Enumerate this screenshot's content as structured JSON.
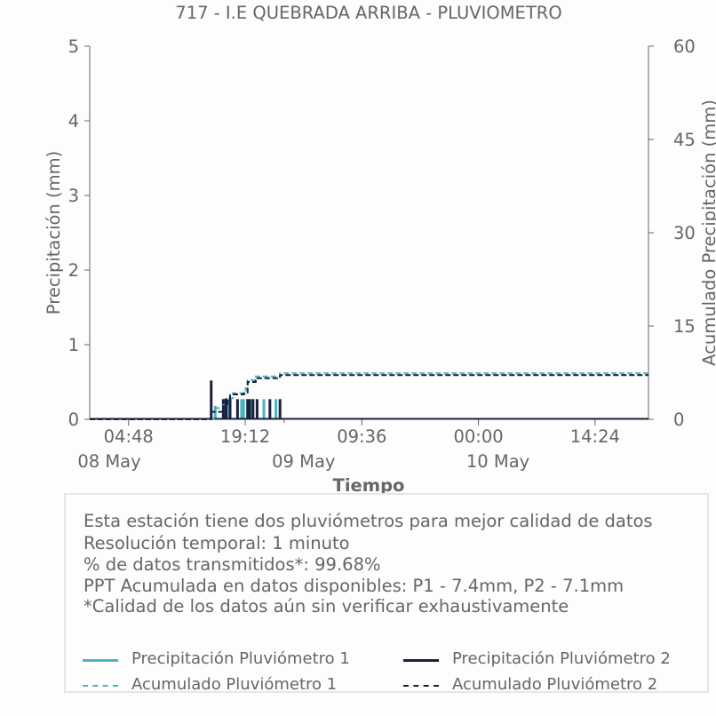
{
  "chart_data": {
    "type": "line",
    "title": "717 - I.E QUEBRADA ARRIBA - PLUVIOMETRO",
    "xlabel": "Tiempo",
    "ylabel": "Precipitación (mm)",
    "y2label": "Acumulado Precipitación (mm)",
    "xlim": [
      "2024-05-08 00:00",
      "2024-05-10 21:00"
    ],
    "ylim": [
      0,
      5
    ],
    "y2lim": [
      0,
      60
    ],
    "yticks": [
      "0",
      "1",
      "2",
      "3",
      "4",
      "5"
    ],
    "y2ticks": [
      "0",
      "15",
      "30",
      "45",
      "60"
    ],
    "xticks": [
      {
        "time": "2024-05-08 04:48",
        "label": "04:48"
      },
      {
        "time": "2024-05-08 19:12",
        "label": "19:12"
      },
      {
        "time": "2024-05-09 09:36",
        "label": "09:36"
      },
      {
        "time": "2024-05-10 00:00",
        "label": "00:00"
      },
      {
        "time": "2024-05-10 14:24",
        "label": "14:24"
      }
    ],
    "date_labels": [
      {
        "time": "2024-05-08 00:00",
        "label": "08 May"
      },
      {
        "time": "2024-05-09 00:00",
        "label": "09 May"
      },
      {
        "time": "2024-05-10 00:00",
        "label": "10 May"
      }
    ],
    "grid": false,
    "series": [
      {
        "name": "Precipitación Pluviómetro 1",
        "kind": "bars",
        "axis": "left",
        "color": "#4bb3bf",
        "points": [
          [
            "2024-05-08 15:30",
            0.18
          ],
          [
            "2024-05-08 16:30",
            0.27
          ],
          [
            "2024-05-08 17:00",
            0.27
          ],
          [
            "2024-05-08 18:45",
            0.27
          ],
          [
            "2024-05-08 19:00",
            0.27
          ],
          [
            "2024-05-08 19:30",
            0.27
          ],
          [
            "2024-05-08 20:00",
            0.27
          ],
          [
            "2024-05-08 21:30",
            0.27
          ],
          [
            "2024-05-08 23:00",
            0.27
          ]
        ]
      },
      {
        "name": "Precipitación Pluviómetro 2",
        "kind": "bars",
        "axis": "left",
        "color": "#1c1f3d",
        "points": [
          [
            "2024-05-08 15:00",
            0.52
          ],
          [
            "2024-05-08 16:30",
            0.27
          ],
          [
            "2024-05-08 16:50",
            0.28
          ],
          [
            "2024-05-08 17:20",
            0.27
          ],
          [
            "2024-05-08 18:15",
            0.27
          ],
          [
            "2024-05-08 19:30",
            0.27
          ],
          [
            "2024-05-08 19:45",
            0.27
          ],
          [
            "2024-05-08 20:10",
            0.27
          ],
          [
            "2024-05-08 20:40",
            0.27
          ],
          [
            "2024-05-08 22:15",
            0.27
          ],
          [
            "2024-05-08 23:30",
            0.27
          ]
        ]
      },
      {
        "name": "Acumulado Pluviómetro 1",
        "kind": "cumulative",
        "axis": "right",
        "color": "#4bb3bf",
        "points": [
          [
            "2024-05-08 00:00",
            0
          ],
          [
            "2024-05-08 15:00",
            0
          ],
          [
            "2024-05-08 15:30",
            1.8
          ],
          [
            "2024-05-08 16:30",
            2.3
          ],
          [
            "2024-05-08 17:00",
            3.4
          ],
          [
            "2024-05-08 17:40",
            4.2
          ],
          [
            "2024-05-08 19:00",
            4.3
          ],
          [
            "2024-05-08 19:15",
            5.0
          ],
          [
            "2024-05-08 19:30",
            6.3
          ],
          [
            "2024-05-08 20:30",
            6.9
          ],
          [
            "2024-05-08 23:30",
            7.4
          ],
          [
            "2024-05-10 21:00",
            7.4
          ]
        ]
      },
      {
        "name": "Acumulado Pluviómetro 2",
        "kind": "cumulative",
        "axis": "right",
        "color": "#1c1f3d",
        "points": [
          [
            "2024-05-08 00:00",
            0
          ],
          [
            "2024-05-08 14:45",
            0
          ],
          [
            "2024-05-08 15:00",
            1.2
          ],
          [
            "2024-05-08 16:30",
            2.1
          ],
          [
            "2024-05-08 17:00",
            3.0
          ],
          [
            "2024-05-08 17:20",
            4.0
          ],
          [
            "2024-05-08 19:00",
            4.1
          ],
          [
            "2024-05-08 19:30",
            6.0
          ],
          [
            "2024-05-08 20:30",
            6.6
          ],
          [
            "2024-05-08 23:30",
            7.1
          ],
          [
            "2024-05-10 21:00",
            7.1
          ]
        ]
      }
    ]
  },
  "info": {
    "lines": [
      "Esta estación tiene dos pluviómetros para mejor calidad de datos",
      "Resolución temporal: 1 minuto",
      "% de datos transmitidos*: 99.68%",
      "PPT Acumulada en datos disponibles: P1 - 7.4mm, P2 - 7.1mm",
      "*Calidad de los datos aún sin verificar exhaustivamente"
    ]
  },
  "legend": {
    "items": [
      {
        "label": "Precipitación Pluviómetro 1",
        "color": "#4bb3bf",
        "style": "solid"
      },
      {
        "label": "Precipitación Pluviómetro 2",
        "color": "#1c1f3d",
        "style": "solid"
      },
      {
        "label": "Acumulado Pluviómetro 1",
        "color": "#4bb3bf",
        "style": "dashed"
      },
      {
        "label": "Acumulado Pluviómetro 2",
        "color": "#1c1f3d",
        "style": "dashed"
      }
    ]
  }
}
